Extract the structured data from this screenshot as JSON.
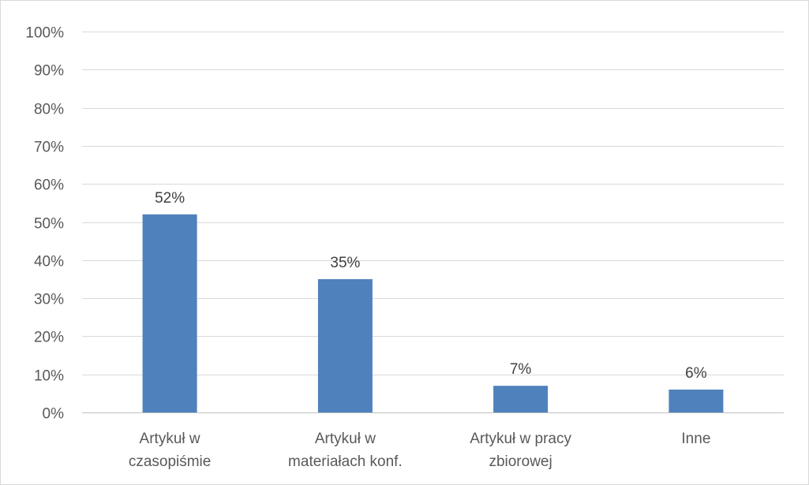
{
  "chart_data": {
    "type": "bar",
    "categories": [
      [
        "Artykuł w",
        "czasopiśmie"
      ],
      [
        "Artykuł w",
        "materiałach konf."
      ],
      [
        "Artykuł w pracy",
        "zbiorowej"
      ],
      [
        "Inne"
      ]
    ],
    "values": [
      52,
      35,
      7,
      6
    ],
    "data_labels": [
      "52%",
      "35%",
      "7%",
      "6%"
    ],
    "ylim": [
      0,
      100
    ],
    "y_ticks": [
      0,
      10,
      20,
      30,
      40,
      50,
      60,
      70,
      80,
      90,
      100
    ],
    "y_tick_labels": [
      "0%",
      "10%",
      "20%",
      "30%",
      "40%",
      "50%",
      "60%",
      "70%",
      "80%",
      "90%",
      "100%"
    ],
    "title": "",
    "xlabel": "",
    "ylabel": "",
    "grid": true,
    "legend": "none",
    "colors": {
      "bar": "#4f81bd",
      "grid": "#d9d9d9",
      "axis": "#bfbfbf",
      "text": "#595959"
    }
  }
}
